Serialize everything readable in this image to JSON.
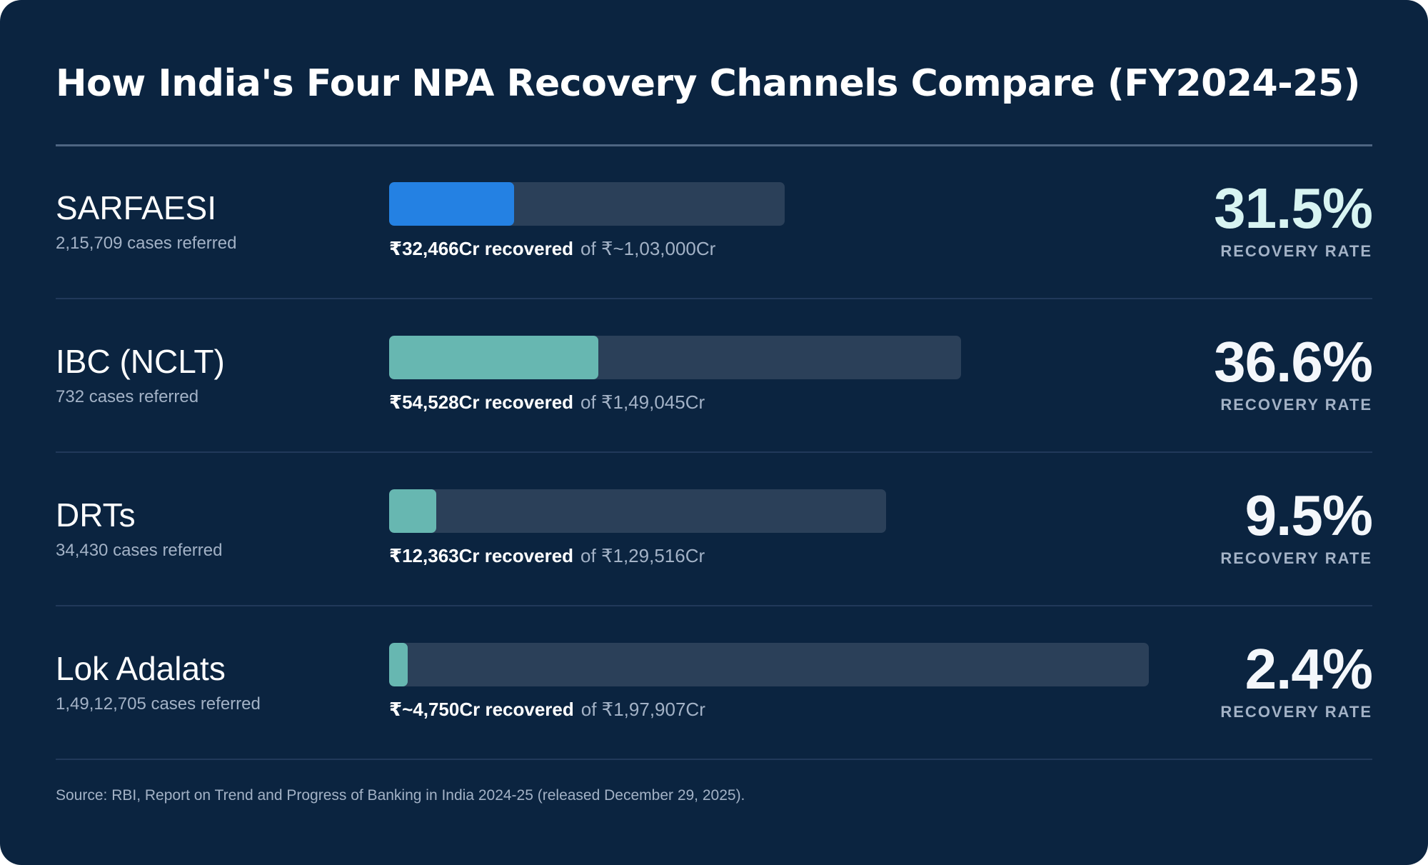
{
  "title": "How India's Four NPA Recovery Channels Compare (FY2024-25)",
  "source": "Source: RBI, Report on Trend and Progress of Banking in India 2024-25 (released December 29, 2025).",
  "colors": {
    "background": "#0b2440",
    "track": "#2b4059",
    "sarfaesi_fill": "#2481e3",
    "teal_fill": "#67b7b1"
  },
  "chart_data": {
    "type": "bar",
    "title": "How India's Four NPA Recovery Channels Compare (FY2024-25)",
    "unit": "₹ Cr",
    "categories": [
      "SARFAESI",
      "IBC (NCLT)",
      "DRTs",
      "Lok Adalats"
    ],
    "rows": [
      {
        "name": "SARFAESI",
        "cases": "2,15,709 cases referred",
        "recovered_label": "₹32,466Cr recovered",
        "total_label": "of ₹~1,03,000Cr",
        "recovered": 32466,
        "total": 103000,
        "rate_label": "31.5%",
        "rate": 31.5,
        "rate_caption": "RECOVERY RATE",
        "color": "#2481e3",
        "rate_accent": true
      },
      {
        "name": "IBC (NCLT)",
        "cases": "732 cases referred",
        "recovered_label": "₹54,528Cr recovered",
        "total_label": "of ₹1,49,045Cr",
        "recovered": 54528,
        "total": 149045,
        "rate_label": "36.6%",
        "rate": 36.6,
        "rate_caption": "RECOVERY RATE",
        "color": "#67b7b1",
        "rate_accent": false
      },
      {
        "name": "DRTs",
        "cases": "34,430 cases referred",
        "recovered_label": "₹12,363Cr recovered",
        "total_label": "of ₹1,29,516Cr",
        "recovered": 12363,
        "total": 129516,
        "rate_label": "9.5%",
        "rate": 9.5,
        "rate_caption": "RECOVERY RATE",
        "color": "#67b7b1",
        "rate_accent": false
      },
      {
        "name": "Lok Adalats",
        "cases": "1,49,12,705 cases referred",
        "recovered_label": "₹~4,750Cr recovered",
        "total_label": "of ₹1,97,907Cr",
        "recovered": 4750,
        "total": 197907,
        "rate_label": "2.4%",
        "rate": 2.4,
        "rate_caption": "RECOVERY RATE",
        "color": "#67b7b1",
        "rate_accent": false
      }
    ],
    "scale_max": 197907,
    "grid": false,
    "legend": "none"
  }
}
